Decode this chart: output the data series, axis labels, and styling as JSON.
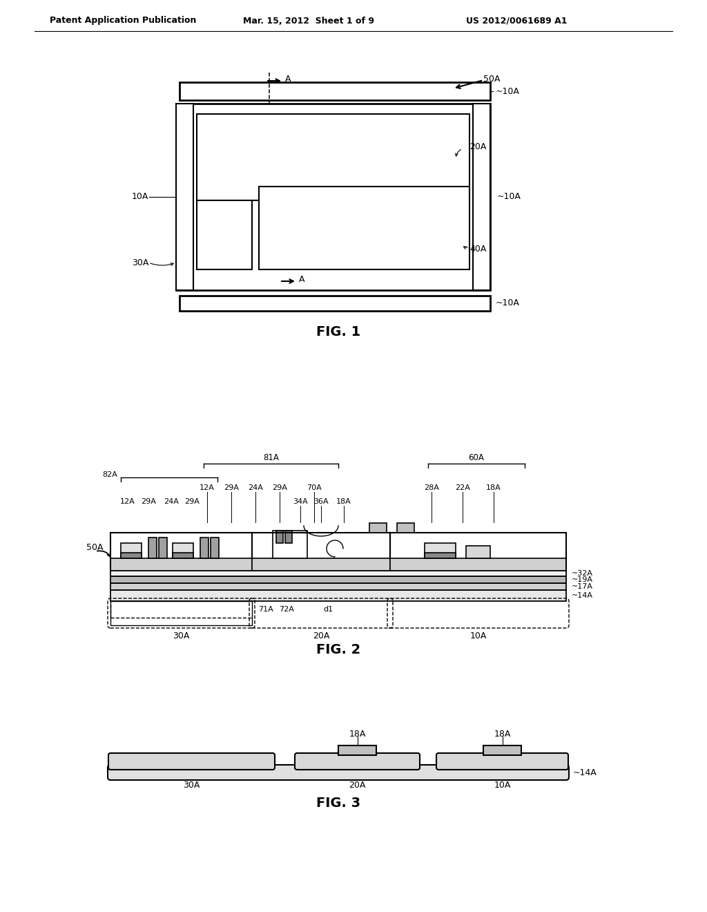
{
  "bg_color": "#ffffff",
  "header_left": "Patent Application Publication",
  "header_mid": "Mar. 15, 2012  Sheet 1 of 9",
  "header_right": "US 2012/0061689 A1",
  "fig1_caption": "FIG. 1",
  "fig2_caption": "FIG. 2",
  "fig3_caption": "FIG. 3",
  "line_color": "#000000",
  "fill_light": "#f0f0f0",
  "fill_mid": "#d8d8d8",
  "fill_dark": "#a0a0a0"
}
